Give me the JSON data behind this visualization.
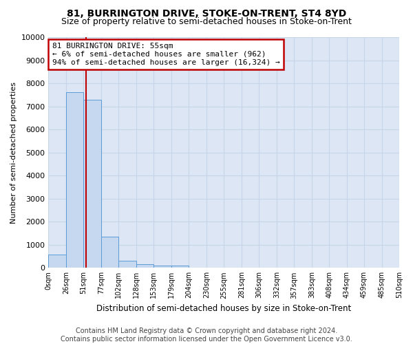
{
  "title": "81, BURRINGTON DRIVE, STOKE-ON-TRENT, ST4 8YD",
  "subtitle": "Size of property relative to semi-detached houses in Stoke-on-Trent",
  "xlabel": "Distribution of semi-detached houses by size in Stoke-on-Trent",
  "ylabel": "Number of semi-detached properties",
  "footer_line1": "Contains HM Land Registry data © Crown copyright and database right 2024.",
  "footer_line2": "Contains public sector information licensed under the Open Government Licence v3.0.",
  "annotation_title": "81 BURRINGTON DRIVE: 55sqm",
  "annotation_line1": "← 6% of semi-detached houses are smaller (962)",
  "annotation_line2": "94% of semi-detached houses are larger (16,324) →",
  "property_size": 55,
  "bar_edges": [
    0,
    26,
    51,
    77,
    102,
    128,
    153,
    179,
    204,
    230,
    255,
    281,
    306,
    332,
    357,
    383,
    408,
    434,
    459,
    485,
    510
  ],
  "bar_values": [
    570,
    7620,
    7280,
    1360,
    310,
    155,
    110,
    85,
    0,
    0,
    0,
    0,
    0,
    0,
    0,
    0,
    0,
    0,
    0,
    0
  ],
  "bar_fill_color": "#c5d8f0",
  "bar_edge_color": "#5b9bd5",
  "vline_color": "#c00000",
  "vline_x": 55,
  "ylim": [
    0,
    10000
  ],
  "yticks": [
    0,
    1000,
    2000,
    3000,
    4000,
    5000,
    6000,
    7000,
    8000,
    9000,
    10000
  ],
  "grid_color": "#c8d4e8",
  "bg_color": "#dce6f5",
  "annotation_box_edgecolor": "#c00000",
  "annotation_box_facecolor": "#ffffff",
  "title_fontsize": 10,
  "subtitle_fontsize": 9,
  "footer_fontsize": 7
}
